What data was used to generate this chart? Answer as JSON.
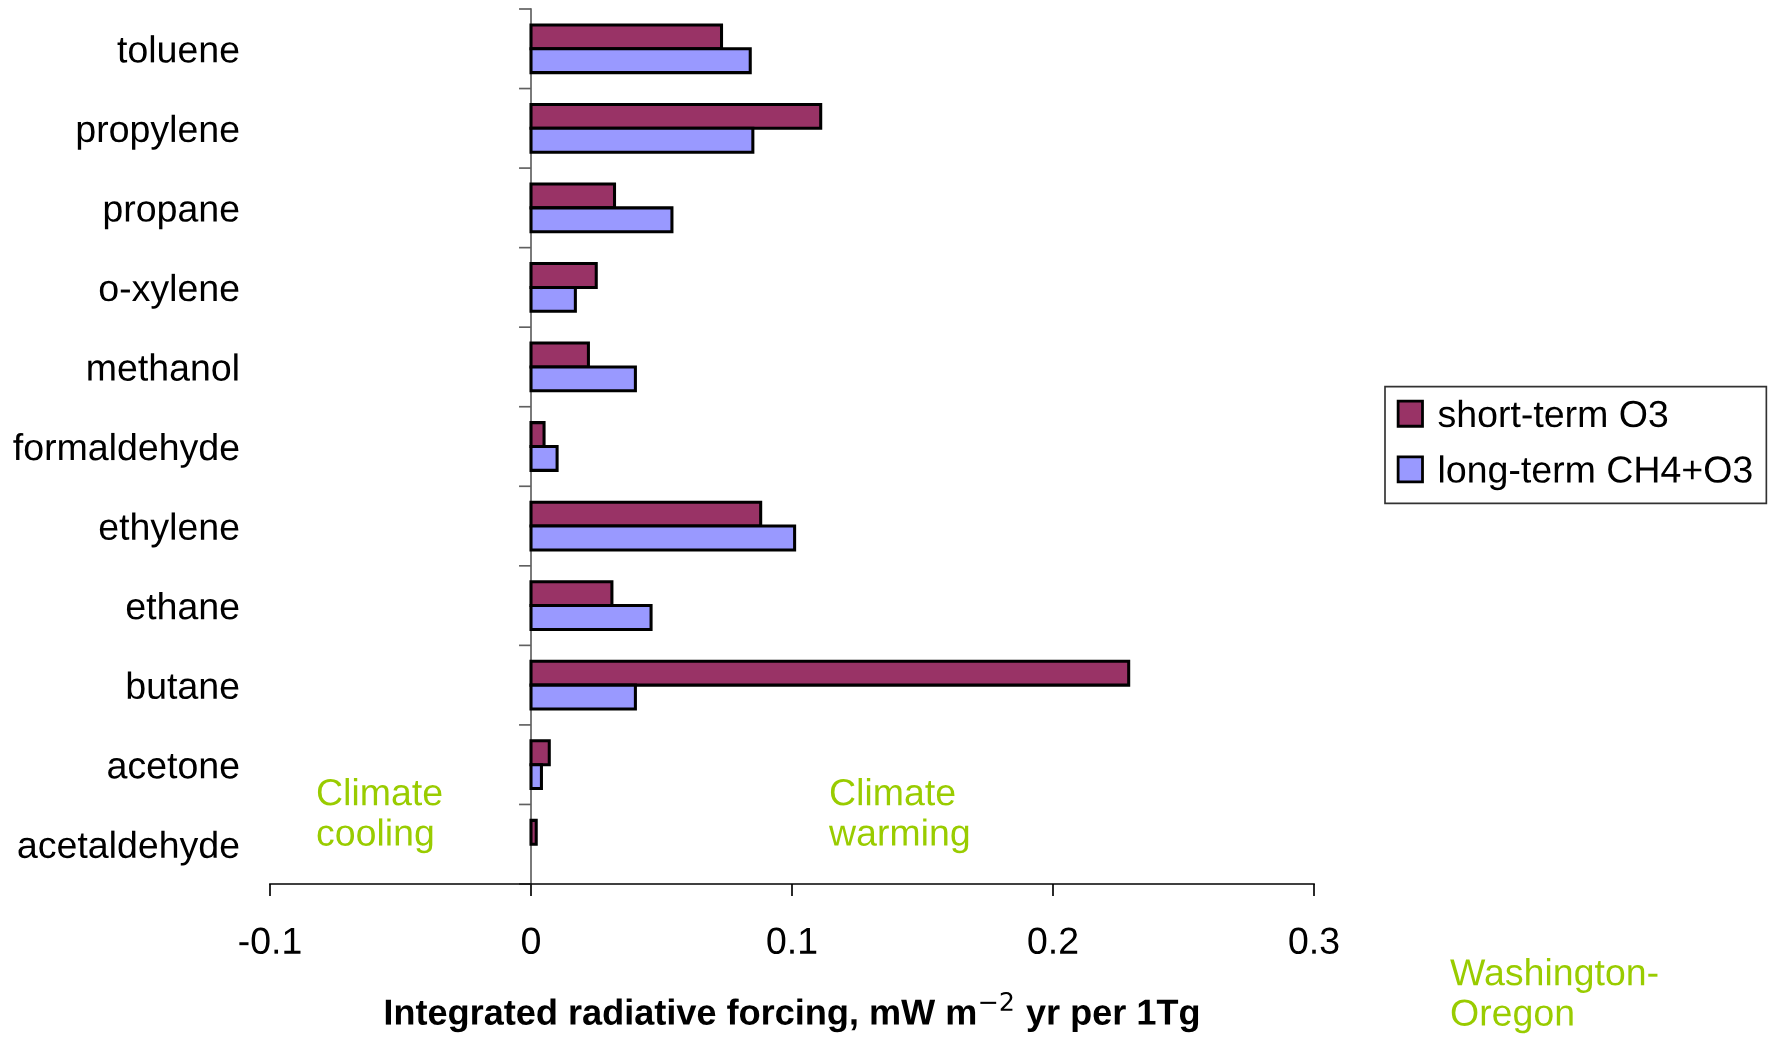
{
  "chart_data": {
    "type": "bar",
    "orientation": "horizontal",
    "categories": [
      "toluene",
      "propylene",
      "propane",
      "o-xylene",
      "methanol",
      "formaldehyde",
      "ethylene",
      "ethane",
      "butane",
      "acetone",
      "acetaldehyde"
    ],
    "series": [
      {
        "name": "short-term O3",
        "color": "#993366",
        "values": [
          0.073,
          0.111,
          0.032,
          0.025,
          0.022,
          0.005,
          0.088,
          0.031,
          0.229,
          0.007,
          0.002
        ]
      },
      {
        "name": "long-term CH4+O3",
        "color": "#9999ff",
        "values": [
          0.084,
          0.085,
          0.054,
          0.017,
          0.04,
          0.01,
          0.101,
          0.046,
          0.04,
          0.004,
          null
        ]
      }
    ],
    "xlim": [
      -0.1,
      0.3
    ],
    "xticks": [
      -0.1,
      0,
      0.1,
      0.2,
      0.3
    ],
    "xlabel": "Integrated radiative forcing, mW m$^{−2}$ yr per 1Tg",
    "legend": "right",
    "annotations": [
      "Climate\ncooling",
      "Climate\nwarming",
      "Washington-\nOregon"
    ]
  }
}
